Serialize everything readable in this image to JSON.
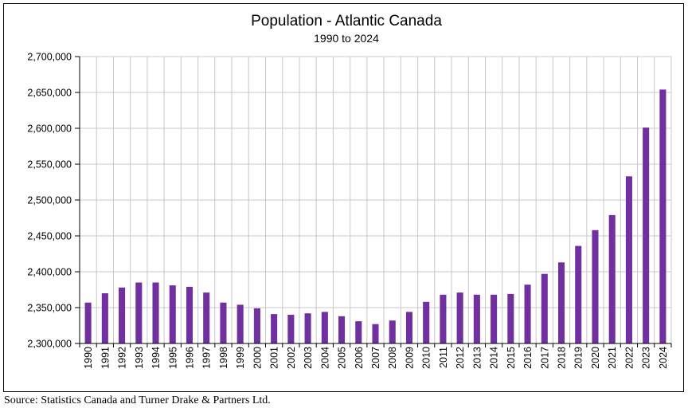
{
  "chart_data": {
    "type": "bar",
    "title": "Population - Atlantic Canada",
    "subtitle": "1990 to 2024",
    "xlabel": "",
    "ylabel": "",
    "categories": [
      "1990",
      "1991",
      "1992",
      "1993",
      "1994",
      "1995",
      "1996",
      "1997",
      "1998",
      "1999",
      "2000",
      "2001",
      "2002",
      "2003",
      "2004",
      "2005",
      "2006",
      "2007",
      "2008",
      "2009",
      "2010",
      "2011",
      "2012",
      "2013",
      "2014",
      "2015",
      "2016",
      "2017",
      "2018",
      "2019",
      "2020",
      "2021",
      "2022",
      "2023",
      "2024"
    ],
    "values": [
      2357000,
      2370000,
      2378000,
      2385000,
      2385000,
      2381000,
      2379000,
      2371000,
      2357000,
      2354000,
      2349000,
      2341000,
      2340000,
      2342000,
      2344000,
      2338000,
      2331000,
      2327000,
      2332000,
      2344000,
      2358000,
      2368000,
      2371000,
      2368000,
      2368000,
      2369000,
      2382000,
      2397000,
      2413000,
      2436000,
      2458000,
      2479000,
      2533000,
      2601000,
      2654000
    ],
    "ylim": [
      2300000,
      2700000
    ],
    "ytick_step": 50000,
    "ytick_labels": [
      "2,300,000",
      "2,350,000",
      "2,400,000",
      "2,450,000",
      "2,500,000",
      "2,550,000",
      "2,600,000",
      "2,650,000",
      "2,700,000"
    ],
    "grid": true,
    "bar_color": "#7030A0",
    "grid_color": "#c8c8c8"
  },
  "source_note": "Source: Statistics Canada and Turner Drake & Partners Ltd."
}
